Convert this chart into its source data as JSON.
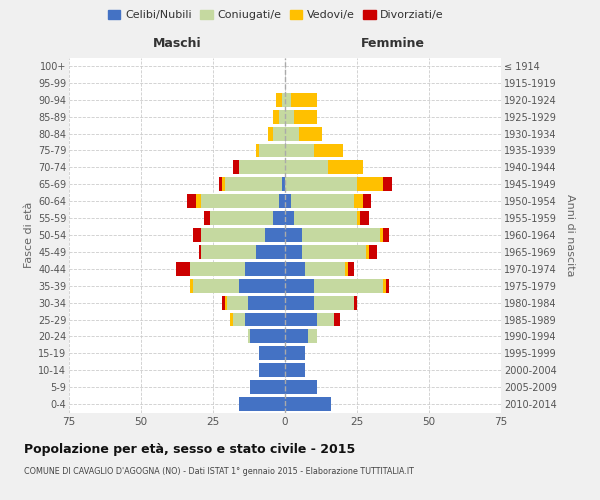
{
  "age_groups": [
    "0-4",
    "5-9",
    "10-14",
    "15-19",
    "20-24",
    "25-29",
    "30-34",
    "35-39",
    "40-44",
    "45-49",
    "50-54",
    "55-59",
    "60-64",
    "65-69",
    "70-74",
    "75-79",
    "80-84",
    "85-89",
    "90-94",
    "95-99",
    "100+"
  ],
  "birth_years": [
    "2010-2014",
    "2005-2009",
    "2000-2004",
    "1995-1999",
    "1990-1994",
    "1985-1989",
    "1980-1984",
    "1975-1979",
    "1970-1974",
    "1965-1969",
    "1960-1964",
    "1955-1959",
    "1950-1954",
    "1945-1949",
    "1940-1944",
    "1935-1939",
    "1930-1934",
    "1925-1929",
    "1920-1924",
    "1915-1919",
    "≤ 1914"
  ],
  "maschi": {
    "celibi": [
      16,
      12,
      9,
      9,
      12,
      14,
      13,
      16,
      14,
      10,
      7,
      4,
      2,
      1,
      0,
      0,
      0,
      0,
      0,
      0,
      0
    ],
    "coniugati": [
      0,
      0,
      0,
      0,
      1,
      4,
      7,
      16,
      19,
      19,
      22,
      22,
      27,
      20,
      16,
      9,
      4,
      2,
      1,
      0,
      0
    ],
    "vedovi": [
      0,
      0,
      0,
      0,
      0,
      1,
      1,
      1,
      0,
      0,
      0,
      0,
      2,
      1,
      0,
      1,
      2,
      2,
      2,
      0,
      0
    ],
    "divorziati": [
      0,
      0,
      0,
      0,
      0,
      0,
      1,
      0,
      5,
      1,
      3,
      2,
      3,
      1,
      2,
      0,
      0,
      0,
      0,
      0,
      0
    ]
  },
  "femmine": {
    "nubili": [
      16,
      11,
      7,
      7,
      8,
      11,
      10,
      10,
      7,
      6,
      6,
      3,
      2,
      0,
      0,
      0,
      0,
      0,
      0,
      0,
      0
    ],
    "coniugate": [
      0,
      0,
      0,
      0,
      3,
      6,
      14,
      24,
      14,
      22,
      27,
      22,
      22,
      25,
      15,
      10,
      5,
      3,
      2,
      0,
      0
    ],
    "vedove": [
      0,
      0,
      0,
      0,
      0,
      0,
      0,
      1,
      1,
      1,
      1,
      1,
      3,
      9,
      12,
      10,
      8,
      8,
      9,
      0,
      0
    ],
    "divorziate": [
      0,
      0,
      0,
      0,
      0,
      2,
      1,
      1,
      2,
      3,
      2,
      3,
      3,
      3,
      0,
      0,
      0,
      0,
      0,
      0,
      0
    ]
  },
  "colors": {
    "celibi": "#4472c4",
    "coniugati": "#c5d9a0",
    "vedovi": "#ffc000",
    "divorziati": "#cc0000"
  },
  "title": "Popolazione per età, sesso e stato civile - 2015",
  "subtitle": "COMUNE DI CAVAGLIO D'AGOGNA (NO) - Dati ISTAT 1° gennaio 2015 - Elaborazione TUTTITALIA.IT",
  "xlabel_left": "Maschi",
  "xlabel_right": "Femmine",
  "ylabel_left": "Fasce di età",
  "ylabel_right": "Anni di nascita",
  "xlim": 75,
  "bg_color": "#f0f0f0",
  "plot_bg": "#ffffff",
  "grid_color": "#cccccc"
}
